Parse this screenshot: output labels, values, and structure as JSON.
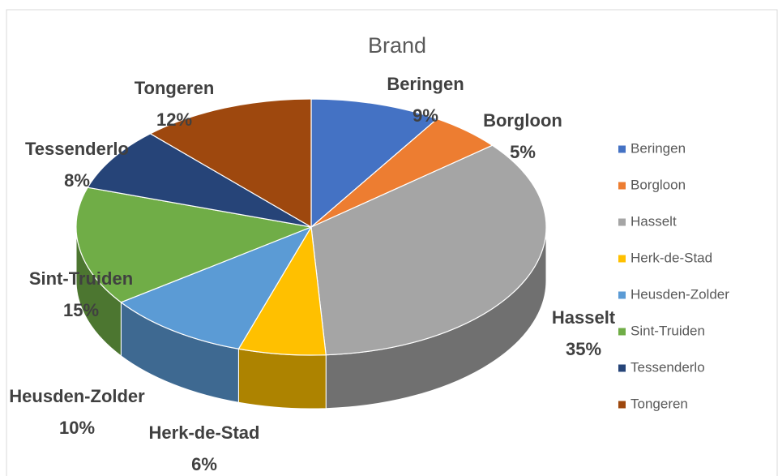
{
  "chart_data": {
    "type": "pie",
    "title": "Brand",
    "categories": [
      "Beringen",
      "Borgloon",
      "Hasselt",
      "Herk-de-Stad",
      "Heusden-Zolder",
      "Sint-Truiden",
      "Tessenderlo",
      "Tongeren"
    ],
    "values": [
      9,
      5,
      35,
      6,
      10,
      15,
      8,
      12
    ],
    "value_labels": [
      "9%",
      "5%",
      "35%",
      "6%",
      "10%",
      "15%",
      "8%",
      "12%"
    ],
    "colors": [
      "#4472c4",
      "#ed7d31",
      "#a5a5a5",
      "#ffc000",
      "#5b9bd5",
      "#70ad47",
      "#264478",
      "#9e480e"
    ],
    "legend": "right"
  }
}
